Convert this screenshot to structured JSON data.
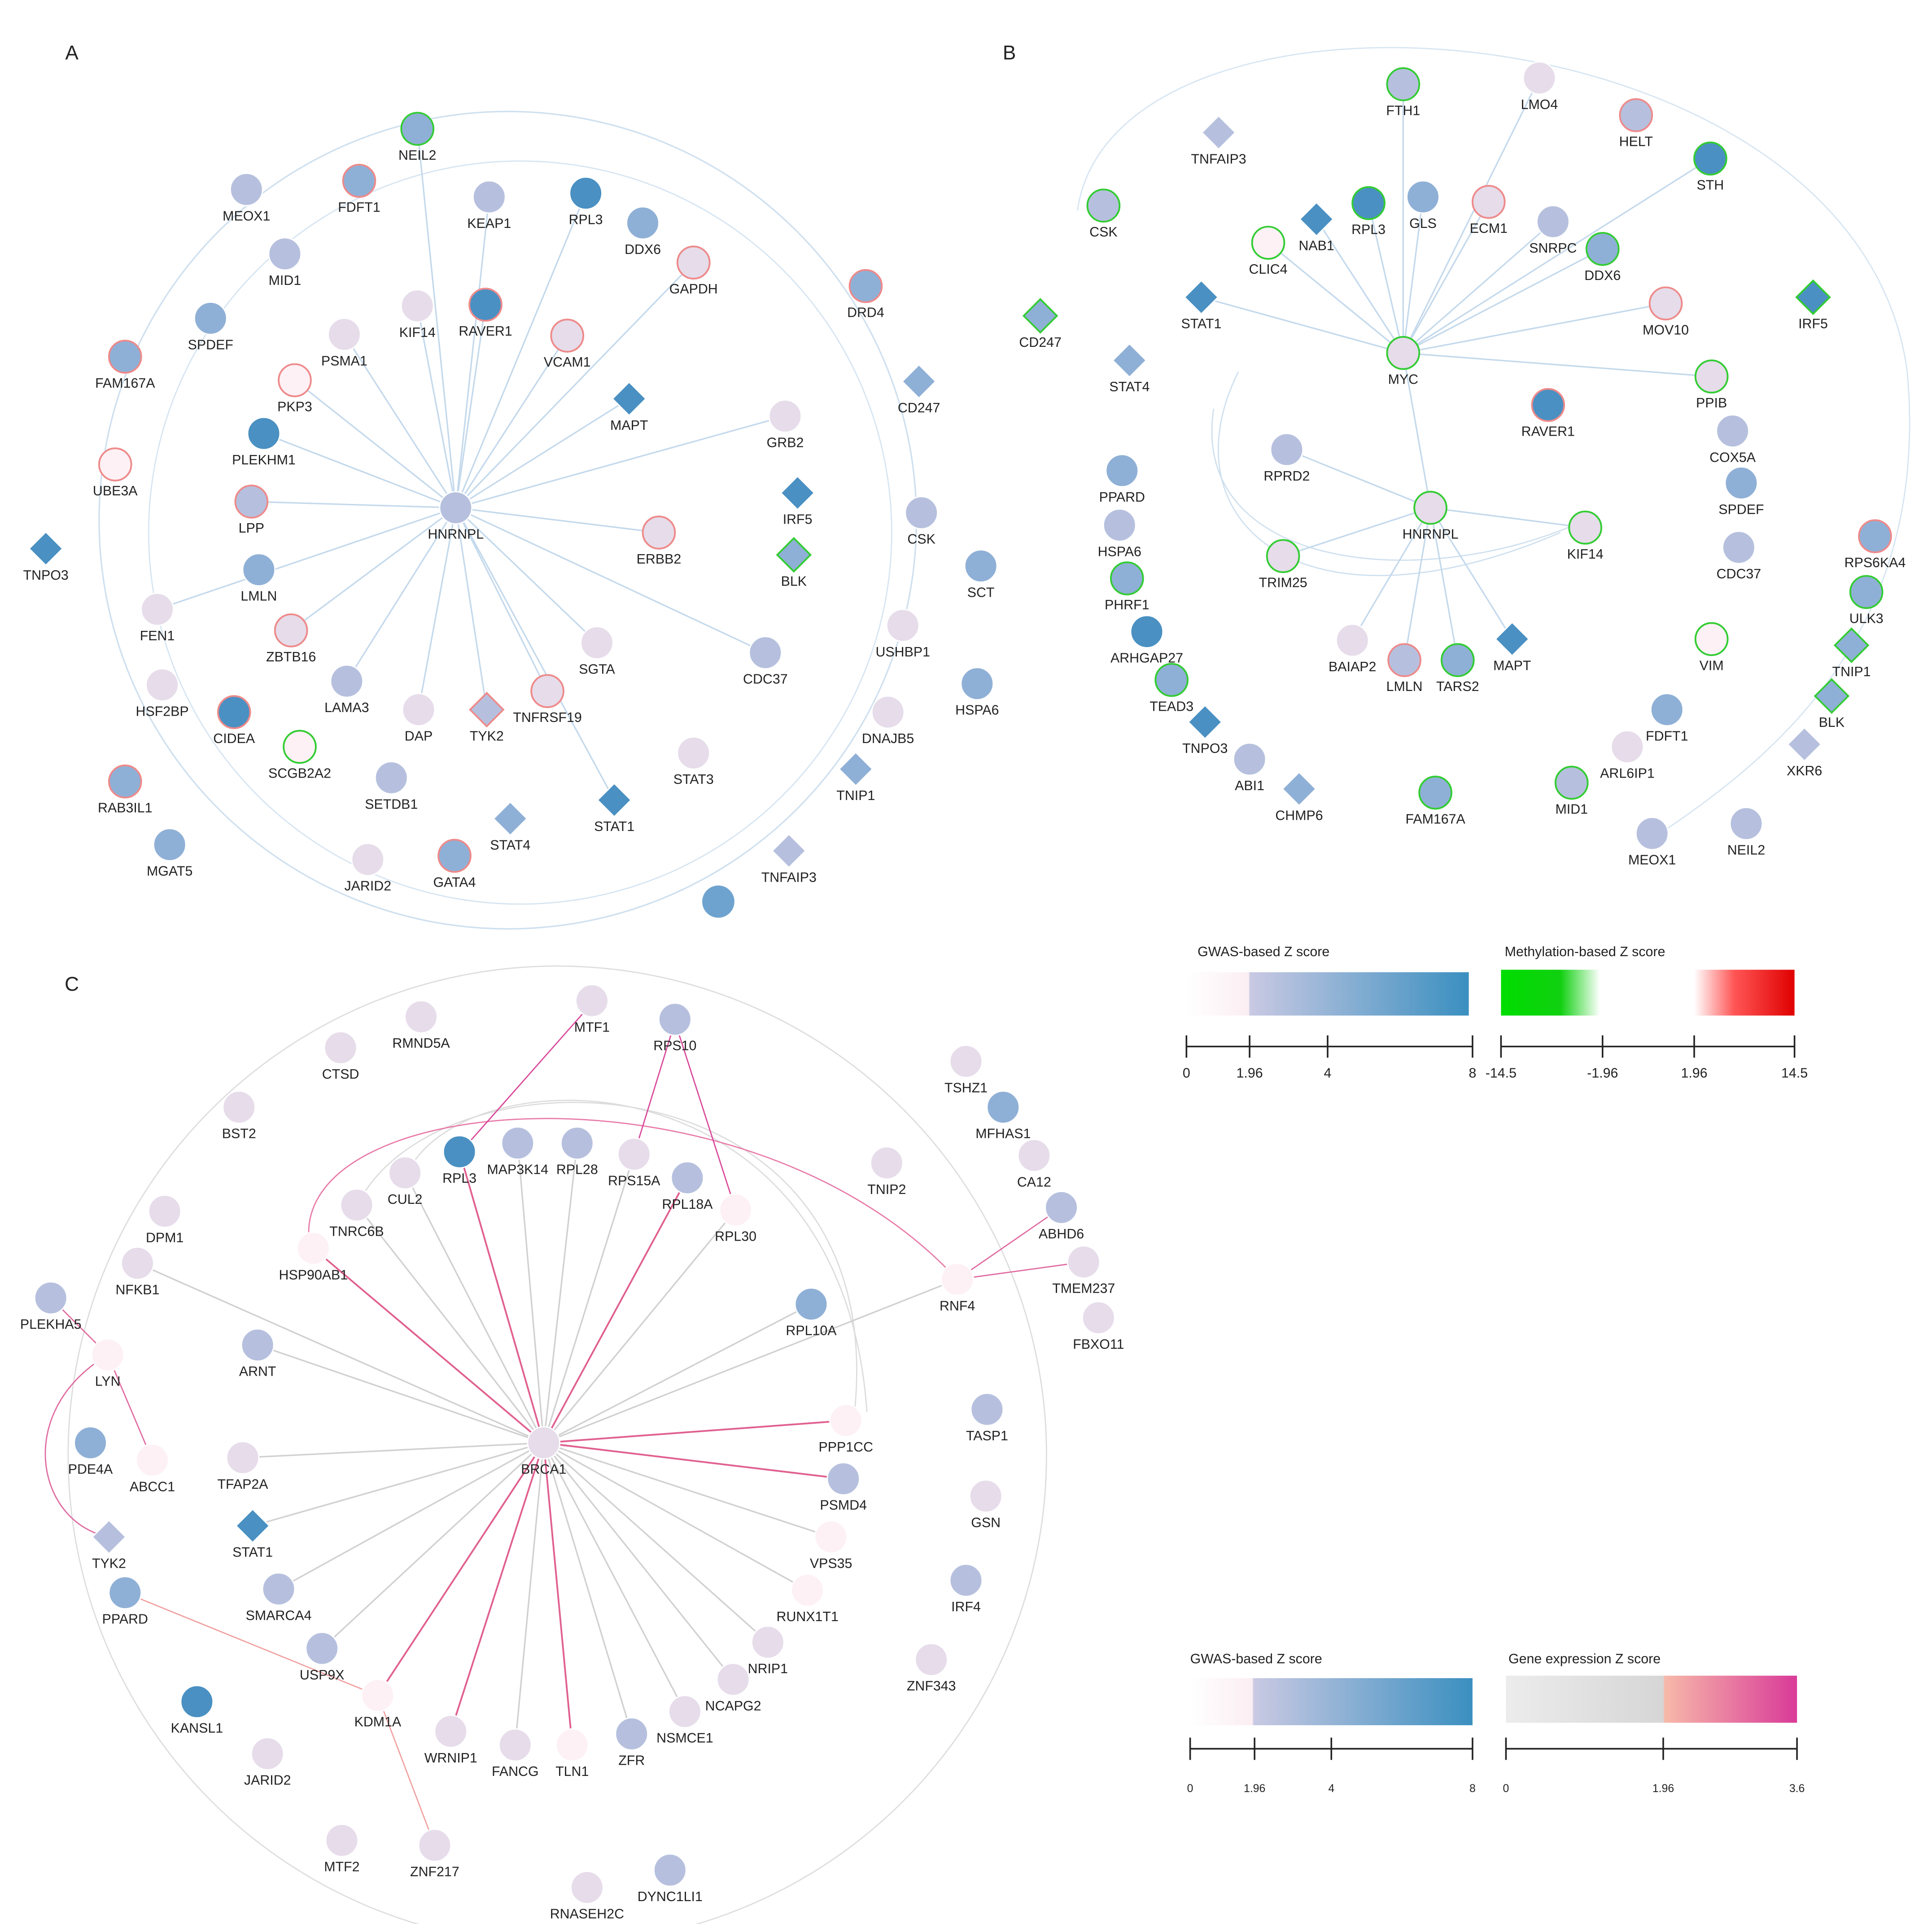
{
  "panels": [
    {
      "label": "A",
      "nodes": [
        "NEIL2",
        "MEOX1",
        "FDFT1",
        "KEAP1",
        "RPL3",
        "DDX6",
        "MID1",
        "GAPDH",
        "DRD4",
        "SPDEF",
        "KIF14",
        "RAVER1",
        "PSMA1",
        "VCAM1",
        "FAM167A",
        "PKP3",
        "MAPT",
        "GRB2",
        "CD247",
        "PLEKHM1",
        "UBE3A",
        "LPP",
        "HNRNPL",
        "ERBB2",
        "IRF5",
        "CSK",
        "TNPO3",
        "BLK",
        "LMLN",
        "SCT",
        "FEN1",
        "ZBTB16",
        "USHBP1",
        "SGTA",
        "CDC37",
        "HSF2BP",
        "LAMA3",
        "DAP",
        "TYK2",
        "TNFRSF19",
        "HSPA6",
        "CIDEA",
        "SCGB2A2",
        "DNAJB5",
        "STAT3",
        "RAB3IL1",
        "SETDB1",
        "TNIP1",
        "STAT4",
        "STAT1",
        "TNFAIP3",
        "MGAT5",
        "JARID2",
        "GATA4"
      ]
    },
    {
      "label": "B",
      "nodes": [
        "FTH1",
        "LMO4",
        "HELT",
        "TNFAIP3",
        "STH",
        "CSK",
        "NAB1",
        "RPL3",
        "GLS",
        "ECM1",
        "SNRPC",
        "CLIC4",
        "DDX6",
        "CD247",
        "STAT1",
        "IRF5",
        "MOV10",
        "STAT4",
        "MYC",
        "PPIB",
        "RAVER1",
        "COX5A",
        "RPRD2",
        "PPARD",
        "SPDEF",
        "HNRNPL",
        "HSPA6",
        "KIF14",
        "CDC37",
        "RPS6KA4",
        "TRIM25",
        "PHRF1",
        "ULK3",
        "ARHGAP27",
        "BAIAP2",
        "MAPT",
        "VIM",
        "TNIP1",
        "TEAD3",
        "LMLN",
        "TARS2",
        "BLK",
        "FDFT1",
        "TNPO3",
        "ARL6IP1",
        "XKR6",
        "ABI1",
        "CHMP6",
        "FAM167A",
        "MID1",
        "MEOX1",
        "NEIL2"
      ]
    },
    {
      "label": "C",
      "nodes": [
        "MTF1",
        "RPS10",
        "RMND5A",
        "CTSD",
        "TSHZ1",
        "BST2",
        "MFHAS1",
        "RPL3",
        "MAP3K14",
        "RPL28",
        "RPS15A",
        "CUL2",
        "RPL18A",
        "CA12",
        "TNIP2",
        "RPL30",
        "DPM1",
        "TNRC6B",
        "ABHD6",
        "HSP90AB1",
        "NFKB1",
        "TMEM237",
        "RNF4",
        "PLEKHA5",
        "RPL10A",
        "FBXO11",
        "LYN",
        "ARNT",
        "TASP1",
        "PPP1CC",
        "BRCA1",
        "PDE4A",
        "ABCC1",
        "TFAP2A",
        "PSMD4",
        "GSN",
        "STAT1",
        "TYK2",
        "VPS35",
        "PPARD",
        "SMARCA4",
        "RUNX1T1",
        "IRF4",
        "ZNF343",
        "NRIP1",
        "USP9X",
        "NCAPG2",
        "KDM1A",
        "KANSL1",
        "NSMCE1",
        "WRNIP1",
        "FANCG",
        "TLN1",
        "ZFR",
        "JARID2",
        "MTF2",
        "ZNF217",
        "DYNC1LI1",
        "RNASEH2C"
      ]
    }
  ],
  "legends": [
    {
      "items": [
        {
          "title": "GWAS-based Z score",
          "ticks": [
            "0",
            "1.96",
            "4",
            "8"
          ]
        },
        {
          "title": "Methylation-based Z score",
          "ticks": [
            "-14.5",
            "-1.96",
            "1.96",
            "14.5"
          ]
        }
      ]
    },
    {
      "items": [
        {
          "title": "GWAS-based Z score",
          "ticks": [
            "0",
            "1.96",
            "4",
            "8"
          ]
        },
        {
          "title": "Gene expression Z score",
          "ticks": [
            "0",
            "1.96",
            "3.6"
          ]
        }
      ]
    }
  ]
}
